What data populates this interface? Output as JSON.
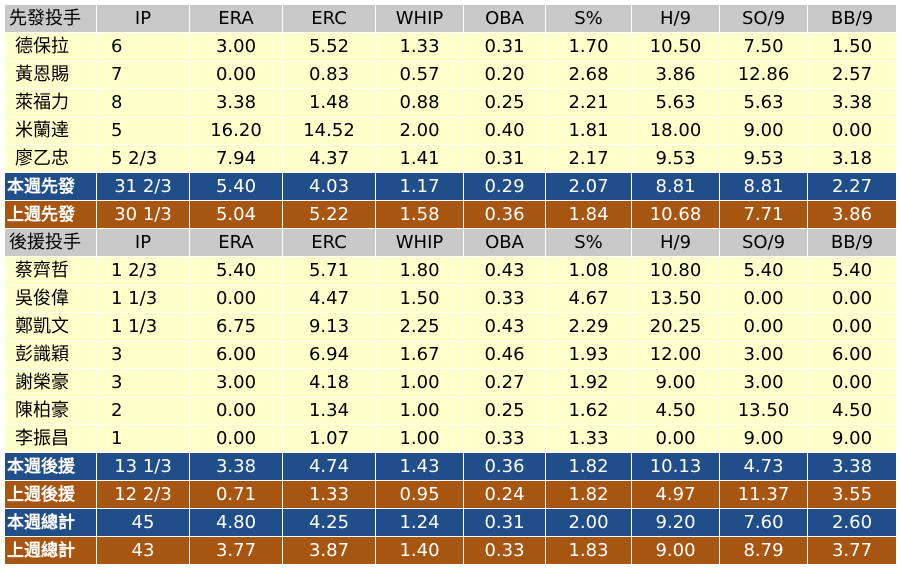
{
  "columns": [
    "IP",
    "ERA",
    "ERC",
    "WHIP",
    "OBA",
    "S%",
    "H/9",
    "SO/9",
    "BB/9"
  ],
  "starters": {
    "header_label": "先發投手",
    "players": [
      {
        "name": "德保拉",
        "ip": "6",
        "era": "3.00",
        "erc": "5.52",
        "whip": "1.33",
        "oba": "0.31",
        "s_pct": "1.70",
        "h9": "10.50",
        "so9": "7.50",
        "bb9": "1.50"
      },
      {
        "name": "黃恩賜",
        "ip": "7",
        "era": "0.00",
        "erc": "0.83",
        "whip": "0.57",
        "oba": "0.20",
        "s_pct": "2.68",
        "h9": "3.86",
        "so9": "12.86",
        "bb9": "2.57"
      },
      {
        "name": "萊福力",
        "ip": "8",
        "era": "3.38",
        "erc": "1.48",
        "whip": "0.88",
        "oba": "0.25",
        "s_pct": "2.21",
        "h9": "5.63",
        "so9": "5.63",
        "bb9": "3.38"
      },
      {
        "name": "米蘭達",
        "ip": "5",
        "era": "16.20",
        "erc": "14.52",
        "whip": "2.00",
        "oba": "0.40",
        "s_pct": "1.81",
        "h9": "18.00",
        "so9": "9.00",
        "bb9": "0.00"
      },
      {
        "name": "廖乙忠",
        "ip": "5 2/3",
        "era": "7.94",
        "erc": "4.37",
        "whip": "1.41",
        "oba": "0.31",
        "s_pct": "2.17",
        "h9": "9.53",
        "so9": "9.53",
        "bb9": "3.18"
      }
    ],
    "this_week": {
      "label": "本週先發",
      "ip": "31 2/3",
      "era": "5.40",
      "erc": "4.03",
      "whip": "1.17",
      "oba": "0.29",
      "s_pct": "2.07",
      "h9": "8.81",
      "so9": "8.81",
      "bb9": "2.27"
    },
    "last_week": {
      "label": "上週先發",
      "ip": "30 1/3",
      "era": "5.04",
      "erc": "5.22",
      "whip": "1.58",
      "oba": "0.36",
      "s_pct": "1.84",
      "h9": "10.68",
      "so9": "7.71",
      "bb9": "3.86"
    }
  },
  "relievers": {
    "header_label": "後援投手",
    "players": [
      {
        "name": "蔡齊哲",
        "ip": "1 2/3",
        "era": "5.40",
        "erc": "5.71",
        "whip": "1.80",
        "oba": "0.43",
        "s_pct": "1.08",
        "h9": "10.80",
        "so9": "5.40",
        "bb9": "5.40"
      },
      {
        "name": "吳俊偉",
        "ip": "1 1/3",
        "era": "0.00",
        "erc": "4.47",
        "whip": "1.50",
        "oba": "0.33",
        "s_pct": "4.67",
        "h9": "13.50",
        "so9": "0.00",
        "bb9": "0.00"
      },
      {
        "name": "鄭凱文",
        "ip": "1 1/3",
        "era": "6.75",
        "erc": "9.13",
        "whip": "2.25",
        "oba": "0.43",
        "s_pct": "2.29",
        "h9": "20.25",
        "so9": "0.00",
        "bb9": "0.00"
      },
      {
        "name": "彭識穎",
        "ip": "3",
        "era": "6.00",
        "erc": "6.94",
        "whip": "1.67",
        "oba": "0.46",
        "s_pct": "1.93",
        "h9": "12.00",
        "so9": "3.00",
        "bb9": "6.00"
      },
      {
        "name": "謝榮豪",
        "ip": "3",
        "era": "3.00",
        "erc": "4.18",
        "whip": "1.00",
        "oba": "0.27",
        "s_pct": "1.92",
        "h9": "9.00",
        "so9": "3.00",
        "bb9": "0.00"
      },
      {
        "name": "陳柏豪",
        "ip": "2",
        "era": "0.00",
        "erc": "1.34",
        "whip": "1.00",
        "oba": "0.25",
        "s_pct": "1.62",
        "h9": "4.50",
        "so9": "13.50",
        "bb9": "4.50"
      },
      {
        "name": "李振昌",
        "ip": "1",
        "era": "0.00",
        "erc": "1.07",
        "whip": "1.00",
        "oba": "0.33",
        "s_pct": "1.33",
        "h9": "0.00",
        "so9": "9.00",
        "bb9": "9.00"
      }
    ],
    "this_week": {
      "label": "本週後援",
      "ip": "13 1/3",
      "era": "3.38",
      "erc": "4.74",
      "whip": "1.43",
      "oba": "0.36",
      "s_pct": "1.82",
      "h9": "10.13",
      "so9": "4.73",
      "bb9": "3.38"
    },
    "last_week": {
      "label": "上週後援",
      "ip": "12 2/3",
      "era": "0.71",
      "erc": "1.33",
      "whip": "0.95",
      "oba": "0.24",
      "s_pct": "1.82",
      "h9": "4.97",
      "so9": "11.37",
      "bb9": "3.55"
    }
  },
  "totals": {
    "this_week": {
      "label": "本週總計",
      "ip": "45",
      "era": "4.80",
      "erc": "4.25",
      "whip": "1.24",
      "oba": "0.31",
      "s_pct": "2.00",
      "h9": "9.20",
      "so9": "7.60",
      "bb9": "2.60"
    },
    "last_week": {
      "label": "上週總計",
      "ip": "43",
      "era": "3.77",
      "erc": "3.87",
      "whip": "1.40",
      "oba": "0.33",
      "s_pct": "1.83",
      "h9": "9.00",
      "so9": "8.79",
      "bb9": "3.77"
    }
  },
  "colors": {
    "header_bg": "#c9c9c9",
    "player_bg": "#ffffcc",
    "this_week_bg": "#1f4e89",
    "last_week_bg": "#a75612"
  }
}
